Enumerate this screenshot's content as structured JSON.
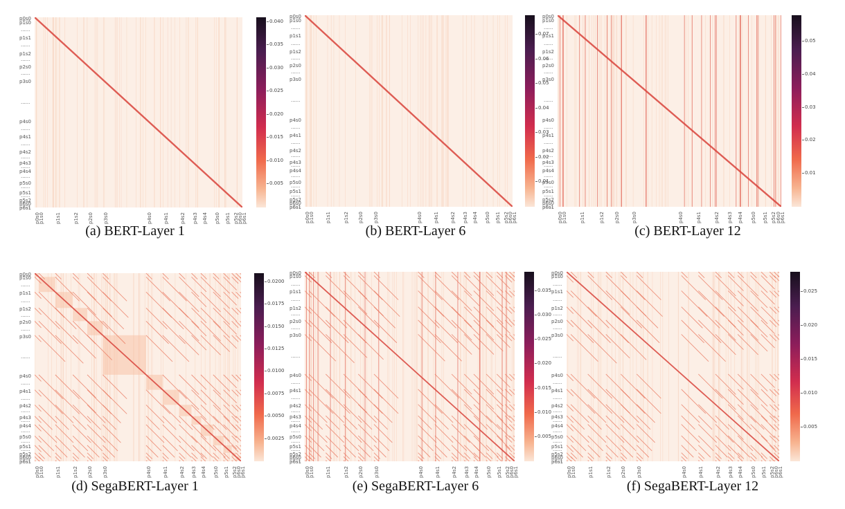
{
  "axis_labels": [
    "p0s0",
    "p1s0",
    "p1s1",
    "p1s2",
    "p2s0",
    "p3s0",
    "p4s0",
    "p4s1",
    "p4s2",
    "p4s3",
    "p4s4",
    "p5s0",
    "p5s1",
    "p5s2",
    "p6s0",
    "p6s1"
  ],
  "separator": "......",
  "chart_data": [
    {
      "type": "heatmap",
      "caption": "(a) BERT-Layer 1",
      "colorbar_ticks": [
        "0.040",
        "0.035",
        "0.030",
        "0.025",
        "0.020",
        "0.015",
        "0.010",
        "0.005"
      ],
      "vmax": 0.041,
      "pattern": "diagonal"
    },
    {
      "type": "heatmap",
      "caption": "(b) BERT-Layer 6",
      "colorbar_ticks": [
        "0.07",
        "0.06",
        "0.05",
        "0.04",
        "0.03",
        "0.02",
        "0.01"
      ],
      "vmax": 0.078,
      "pattern": "diagonal"
    },
    {
      "type": "heatmap",
      "caption": "(c) BERT-Layer 12",
      "colorbar_ticks": [
        "0.05",
        "0.04",
        "0.03",
        "0.02",
        "0.01"
      ],
      "vmax": 0.058,
      "pattern": "diagonal-vertical"
    },
    {
      "type": "heatmap",
      "caption": "(d) SegaBERT-Layer 1",
      "colorbar_ticks": [
        "0.0200",
        "0.0175",
        "0.0150",
        "0.0125",
        "0.0100",
        "0.0075",
        "0.0050",
        "0.0025"
      ],
      "vmax": 0.021,
      "pattern": "segment-blocks"
    },
    {
      "type": "heatmap",
      "caption": "(e) SegaBERT-Layer 6",
      "colorbar_ticks": [
        "0.035",
        "0.030",
        "0.025",
        "0.020",
        "0.015",
        "0.010",
        "0.005"
      ],
      "vmax": 0.039,
      "pattern": "segment-diagonals-vertical"
    },
    {
      "type": "heatmap",
      "caption": "(f) SegaBERT-Layer 12",
      "colorbar_ticks": [
        "0.025",
        "0.020",
        "0.015",
        "0.010",
        "0.005"
      ],
      "vmax": 0.028,
      "pattern": "segment-diagonals-dense"
    }
  ]
}
